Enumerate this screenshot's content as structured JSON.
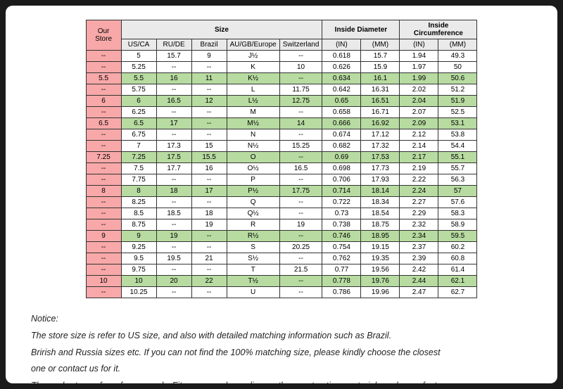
{
  "table": {
    "group_headers": {
      "size": "Size",
      "inside_diameter": "Inside Diameter",
      "inside_circumference": "Inside Circumference"
    },
    "columns": {
      "our_store": "Our Store",
      "us_ca": "US/CA",
      "ru_de": "RU/DE",
      "brazil": "Brazil",
      "au_gb_eu": "AU/GB/Europe",
      "switzerland": "Switzerland",
      "diam_in": "(IN)",
      "diam_mm": "(MM)",
      "circ_in": "(IN)",
      "circ_mm": "(MM)"
    },
    "rows": [
      {
        "store": "--",
        "us": "5",
        "ru": "15.7",
        "br": "9",
        "au": "J½",
        "sw": "--",
        "din": "0.618",
        "dmm": "15.7",
        "cin": "1.94",
        "cmm": "49.3",
        "hl": false
      },
      {
        "store": "--",
        "us": "5.25",
        "ru": "--",
        "br": "--",
        "au": "K",
        "sw": "10",
        "din": "0.626",
        "dmm": "15.9",
        "cin": "1.97",
        "cmm": "50",
        "hl": false
      },
      {
        "store": "5.5",
        "us": "5.5",
        "ru": "16",
        "br": "11",
        "au": "K½",
        "sw": "--",
        "din": "0.634",
        "dmm": "16.1",
        "cin": "1.99",
        "cmm": "50.6",
        "hl": true
      },
      {
        "store": "--",
        "us": "5.75",
        "ru": "--",
        "br": "--",
        "au": "L",
        "sw": "11.75",
        "din": "0.642",
        "dmm": "16.31",
        "cin": "2.02",
        "cmm": "51.2",
        "hl": false
      },
      {
        "store": "6",
        "us": "6",
        "ru": "16.5",
        "br": "12",
        "au": "L½",
        "sw": "12.75",
        "din": "0.65",
        "dmm": "16.51",
        "cin": "2.04",
        "cmm": "51.9",
        "hl": true
      },
      {
        "store": "--",
        "us": "6.25",
        "ru": "--",
        "br": "--",
        "au": "M",
        "sw": "--",
        "din": "0.658",
        "dmm": "16.71",
        "cin": "2.07",
        "cmm": "52.5",
        "hl": false
      },
      {
        "store": "6.5",
        "us": "6.5",
        "ru": "17",
        "br": "--",
        "au": "M½",
        "sw": "14",
        "din": "0.666",
        "dmm": "16.92",
        "cin": "2.09",
        "cmm": "53.1",
        "hl": true
      },
      {
        "store": "--",
        "us": "6.75",
        "ru": "--",
        "br": "--",
        "au": "N",
        "sw": "--",
        "din": "0.674",
        "dmm": "17.12",
        "cin": "2.12",
        "cmm": "53.8",
        "hl": false
      },
      {
        "store": "--",
        "us": "7",
        "ru": "17.3",
        "br": "15",
        "au": "N½",
        "sw": "15.25",
        "din": "0.682",
        "dmm": "17.32",
        "cin": "2.14",
        "cmm": "54.4",
        "hl": false
      },
      {
        "store": "7.25",
        "us": "7.25",
        "ru": "17.5",
        "br": "15.5",
        "au": "O",
        "sw": "--",
        "din": "0.69",
        "dmm": "17.53",
        "cin": "2.17",
        "cmm": "55.1",
        "hl": true
      },
      {
        "store": "--",
        "us": "7.5",
        "ru": "17.7",
        "br": "16",
        "au": "O½",
        "sw": "16.5",
        "din": "0.698",
        "dmm": "17.73",
        "cin": "2.19",
        "cmm": "55.7",
        "hl": false
      },
      {
        "store": "--",
        "us": "7.75",
        "ru": "--",
        "br": "--",
        "au": "P",
        "sw": "--",
        "din": "0.706",
        "dmm": "17.93",
        "cin": "2.22",
        "cmm": "56.3",
        "hl": false
      },
      {
        "store": "8",
        "us": "8",
        "ru": "18",
        "br": "17",
        "au": "P½",
        "sw": "17.75",
        "din": "0.714",
        "dmm": "18.14",
        "cin": "2.24",
        "cmm": "57",
        "hl": true
      },
      {
        "store": "--",
        "us": "8.25",
        "ru": "--",
        "br": "--",
        "au": "Q",
        "sw": "--",
        "din": "0.722",
        "dmm": "18.34",
        "cin": "2.27",
        "cmm": "57.6",
        "hl": false
      },
      {
        "store": "--",
        "us": "8.5",
        "ru": "18.5",
        "br": "18",
        "au": "Q½",
        "sw": "--",
        "din": "0.73",
        "dmm": "18.54",
        "cin": "2.29",
        "cmm": "58.3",
        "hl": false
      },
      {
        "store": "--",
        "us": "8.75",
        "ru": "--",
        "br": "19",
        "au": "R",
        "sw": "19",
        "din": "0.738",
        "dmm": "18.75",
        "cin": "2.32",
        "cmm": "58.9",
        "hl": false
      },
      {
        "store": "9",
        "us": "9",
        "ru": "19",
        "br": "--",
        "au": "R½",
        "sw": "--",
        "din": "0.746",
        "dmm": "18.95",
        "cin": "2.34",
        "cmm": "59.5",
        "hl": true
      },
      {
        "store": "--",
        "us": "9.25",
        "ru": "--",
        "br": "--",
        "au": "S",
        "sw": "20.25",
        "din": "0.754",
        "dmm": "19.15",
        "cin": "2.37",
        "cmm": "60.2",
        "hl": false
      },
      {
        "store": "--",
        "us": "9.5",
        "ru": "19.5",
        "br": "21",
        "au": "S½",
        "sw": "--",
        "din": "0.762",
        "dmm": "19.35",
        "cin": "2.39",
        "cmm": "60.8",
        "hl": false
      },
      {
        "store": "--",
        "us": "9.75",
        "ru": "--",
        "br": "--",
        "au": "T",
        "sw": "21.5",
        "din": "0.77",
        "dmm": "19.56",
        "cin": "2.42",
        "cmm": "61.4",
        "hl": false
      },
      {
        "store": "10",
        "us": "10",
        "ru": "20",
        "br": "22",
        "au": "T½",
        "sw": "--",
        "din": "0.778",
        "dmm": "19.76",
        "cin": "2.44",
        "cmm": "62.1",
        "hl": true
      },
      {
        "store": "--",
        "us": "10.25",
        "ru": "--",
        "br": "--",
        "au": "U",
        "sw": "--",
        "din": "0.786",
        "dmm": "19.96",
        "cin": "2.47",
        "cmm": "62.7",
        "hl": false
      }
    ]
  },
  "notice": {
    "title": "Notice:",
    "line1": "The store size is refer to US size, and also with detailed matching information such as Brazil.",
    "line2": "Brirish and Russia sizes etc. If you can not find the 100% matching size, please kindly choose the closest",
    "line3": "one or contact us for it.",
    "line4": "These charts are for reference only, Fit may vary depending on the construction, materials and manufacturer."
  },
  "style": {
    "pink": "#f8a8a8",
    "green": "#b7dba0",
    "header_gray": "#eaeaea",
    "border": "#333333",
    "page_bg": "#ffffff",
    "body_bg": "#1a1a1a",
    "font_size_table": 10,
    "font_size_notice": 12.5
  }
}
